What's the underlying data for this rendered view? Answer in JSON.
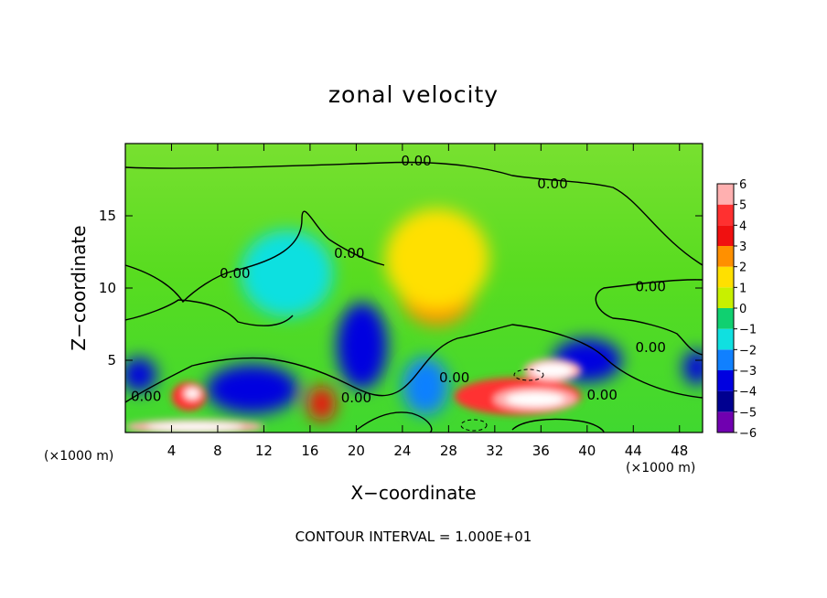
{
  "chart_data": {
    "type": "heatmap",
    "title": "zonal velocity",
    "xlabel": "X−coordinate",
    "ylabel": "Z−coordinate",
    "x_unit_label": "(×1000 m)",
    "z_unit_label": "(×1000 m)",
    "x_ticks": [
      4,
      8,
      12,
      16,
      20,
      24,
      28,
      32,
      36,
      40,
      44,
      48
    ],
    "z_ticks": [
      5,
      10,
      15
    ],
    "xlim": [
      0,
      50
    ],
    "zlim": [
      0,
      20
    ],
    "colorbar": {
      "ticks": [
        6,
        5,
        4,
        3,
        2,
        1,
        0,
        -1,
        -2,
        -3,
        -4,
        -5,
        -6
      ],
      "tick_labels": [
        "6",
        "5",
        "4",
        "3",
        "2",
        "1",
        "0",
        "−1",
        "−2",
        "−3",
        "−4",
        "−5",
        "−6"
      ],
      "range": [
        -6,
        6
      ],
      "colors": {
        "6": "#ffb0b0",
        "5": "#ff3030",
        "4": "#f01010",
        "3": "#ff9000",
        "2": "#ffe000",
        "1": "#c8f000",
        "0": "#60e000",
        "-1": "#10d070",
        "-2": "#10e0e0",
        "-3": "#1080ff",
        "-4": "#0000e0",
        "-5": "#000090",
        "-6": "#7000b0"
      }
    },
    "contour_labels": [
      {
        "text": "0.00",
        "x": 25.2,
        "z": 18.8
      },
      {
        "text": "0.00",
        "x": 37.0,
        "z": 17.2
      },
      {
        "text": "0.00",
        "x": 19.4,
        "z": 12.4
      },
      {
        "text": "0.00",
        "x": 9.5,
        "z": 11.0
      },
      {
        "text": "0.00",
        "x": 45.5,
        "z": 10.1
      },
      {
        "text": "0.00",
        "x": 45.5,
        "z": 5.9
      },
      {
        "text": "0.00",
        "x": 1.8,
        "z": 2.5
      },
      {
        "text": "0.00",
        "x": 20.0,
        "z": 2.4
      },
      {
        "text": "0.00",
        "x": 28.5,
        "z": 3.8
      },
      {
        "text": "0.00",
        "x": 41.3,
        "z": 2.6
      }
    ],
    "features": [
      {
        "sign": "positive",
        "value": 3,
        "x": 27,
        "z": 10,
        "rx": 3.3,
        "rz": 2.6
      },
      {
        "sign": "positive",
        "value": 2,
        "x": 27,
        "z": 12,
        "rx": 4.5,
        "rz": 3.5
      },
      {
        "sign": "negative",
        "value": -2,
        "x": 14,
        "z": 11,
        "rx": 4,
        "rz": 3
      },
      {
        "sign": "negative",
        "value": -4,
        "x": 20.5,
        "z": 6,
        "rx": 2.2,
        "rz": 3
      },
      {
        "sign": "negative",
        "value": -4,
        "x": 11,
        "z": 3,
        "rx": 4,
        "rz": 1.7
      },
      {
        "sign": "negative",
        "value": -3,
        "x": 26,
        "z": 3.2,
        "rx": 2,
        "rz": 2
      },
      {
        "sign": "positive",
        "value": 5,
        "x": 34,
        "z": 2.5,
        "rx": 5.5,
        "rz": 1.3
      },
      {
        "sign": "positive",
        "value": 6,
        "x": 35.5,
        "z": 2.3,
        "rx": 3.6,
        "rz": 0.8
      },
      {
        "sign": "positive",
        "value": 6,
        "x": 37,
        "z": 4.3,
        "rx": 2.5,
        "rz": 0.8
      },
      {
        "sign": "negative",
        "value": -4,
        "x": 40,
        "z": 5,
        "rx": 3,
        "rz": 1.5
      },
      {
        "sign": "positive",
        "value": 5,
        "x": 5.5,
        "z": 2.5,
        "rx": 1.5,
        "rz": 1
      },
      {
        "sign": "positive",
        "value": 6,
        "x": 5.8,
        "z": 2.7,
        "rx": 0.8,
        "rz": 0.5
      },
      {
        "sign": "negative",
        "value": -4,
        "x": 1.2,
        "z": 4,
        "rx": 1.5,
        "rz": 1.2
      },
      {
        "sign": "negative",
        "value": -4,
        "x": 49.5,
        "z": 4.5,
        "rx": 1.2,
        "rz": 1.2
      },
      {
        "sign": "positive",
        "value": 4,
        "x": 17,
        "z": 2,
        "rx": 1.2,
        "rz": 1.2
      },
      {
        "sign": "positive",
        "value": 6,
        "x": 6,
        "z": 0.4,
        "rx": 6,
        "rz": 0.5
      }
    ]
  },
  "footer": {
    "contour_interval_text": "CONTOUR INTERVAL = 1.000E+01"
  }
}
